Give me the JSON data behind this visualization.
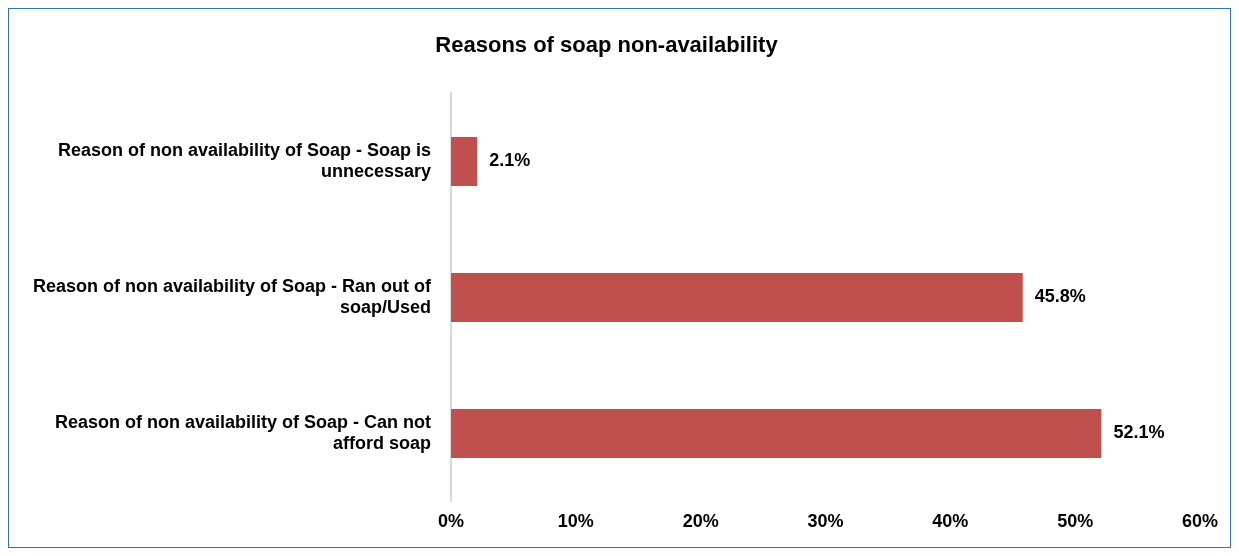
{
  "chart_data": {
    "type": "bar",
    "orientation": "horizontal",
    "title": "Reasons of soap non-availability",
    "categories": [
      "Reason of non availability of Soap - Soap is unnecessary",
      "Reason of non availability of Soap - Ran out of soap/Used",
      "Reason of non availability of Soap - Can not afford soap"
    ],
    "values": [
      2.1,
      45.8,
      52.1
    ],
    "color": "#c0504d",
    "value_labels": [
      "2.1%",
      "45.8%",
      "52.1%"
    ],
    "xlim": [
      0,
      60
    ],
    "xticks": [
      {
        "value": 0,
        "label": "0%"
      },
      {
        "value": 10,
        "label": "10%"
      },
      {
        "value": 20,
        "label": "20%"
      },
      {
        "value": 30,
        "label": "30%"
      },
      {
        "value": 40,
        "label": "40%"
      },
      {
        "value": 50,
        "label": "50%"
      },
      {
        "value": 60,
        "label": "60%"
      }
    ],
    "grid": false,
    "legend": false
  }
}
